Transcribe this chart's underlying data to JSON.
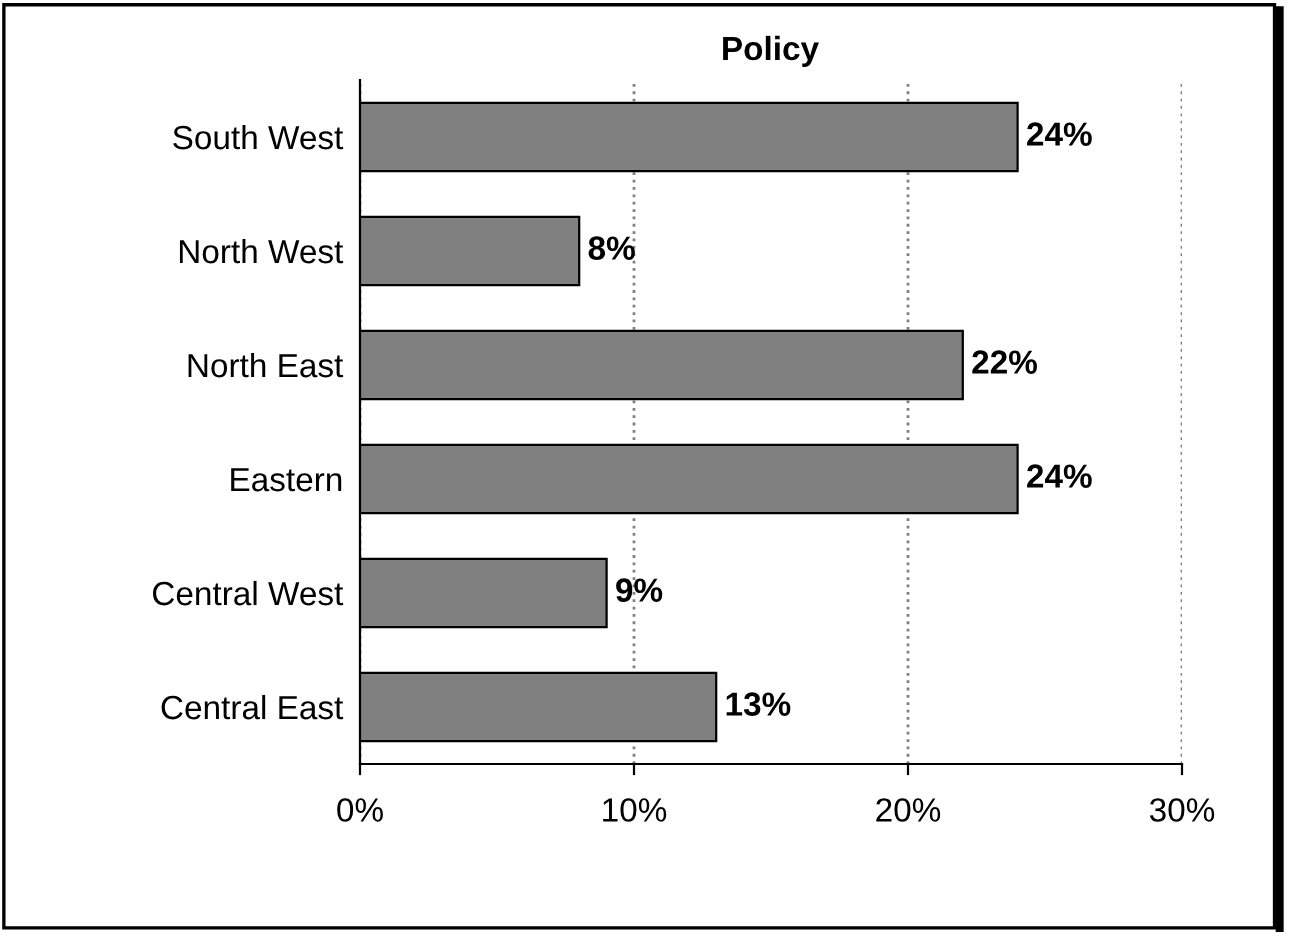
{
  "chart_data": {
    "type": "bar",
    "orientation": "horizontal",
    "title": "Policy",
    "categories": [
      "South West",
      "North West",
      "North East",
      "Eastern",
      "Central West",
      "Central East"
    ],
    "values": [
      24,
      8,
      22,
      24,
      9,
      13
    ],
    "color": "#808080",
    "value_labels": [
      "24%",
      "8%",
      "22%",
      "24%",
      "9%",
      "13%"
    ],
    "xlim": [
      0,
      30
    ],
    "xticks": [
      {
        "value": 0,
        "label": "0%"
      },
      {
        "value": 10,
        "label": "10%"
      },
      {
        "value": 20,
        "label": "20%"
      },
      {
        "value": 30,
        "label": "30%"
      }
    ],
    "grid": "x",
    "legend": false
  }
}
